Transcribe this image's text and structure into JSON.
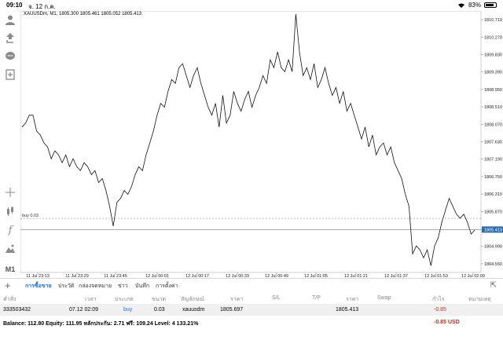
{
  "status": {
    "time": "09:10",
    "date": "จ. 12 ก.ค.",
    "battery": "83%",
    "battery_level": 0.83
  },
  "toolbar": {
    "timeframe": "M1"
  },
  "chart": {
    "header": "XAUUSDm, M1, 1805.300 1805.461 1805.052 1805.413",
    "buy_label": "buy 0.03",
    "current_price": "1805.413"
  },
  "chart_data": {
    "type": "line",
    "ylim": [
      1804.33,
      1810.93
    ],
    "y_ticks": [
      "1810.710",
      "1810.270",
      "1809.830",
      "1809.390",
      "1808.950",
      "1808.510",
      "1808.070",
      "1807.630",
      "1807.190",
      "1806.750",
      "1806.310",
      "1805.870",
      "1805.413",
      "1804.990",
      "1804.550"
    ],
    "y_tick_values": [
      1810.71,
      1810.27,
      1809.83,
      1809.39,
      1808.95,
      1808.51,
      1808.07,
      1807.63,
      1807.19,
      1806.75,
      1806.31,
      1805.87,
      1805.413,
      1804.99,
      1804.55
    ],
    "x_labels": [
      "11 Jul 23:13",
      "11 Jul 23:29",
      "11 Jul 23:45",
      "12 Jul 00:01",
      "12 Jul 00:17",
      "12 Jul 00:33",
      "12 Jul 00:49",
      "12 Jul 01:05",
      "12 Jul 01:21",
      "12 Jul 01:37",
      "12 Jul 01:53",
      "12 Jul 02:09"
    ],
    "buy_level": 1805.697,
    "current_level": 1805.413,
    "series": [
      {
        "values": [
          1808.0,
          1808.1,
          1808.3,
          1808.3,
          1807.9,
          1807.8,
          1807.6,
          1807.5,
          1807.2,
          1807.4,
          1807.3,
          1807.1,
          1807.3,
          1807.0,
          1807.2,
          1807.0,
          1806.9,
          1807.1,
          1807.0,
          1806.8,
          1806.9,
          1806.6,
          1806.7,
          1806.4,
          1806.0,
          1805.5,
          1806.1,
          1806.2,
          1806.4,
          1806.3,
          1806.5,
          1806.8,
          1807.0,
          1806.9,
          1807.3,
          1807.6,
          1807.9,
          1808.3,
          1808.6,
          1808.5,
          1808.9,
          1809.2,
          1809.1,
          1809.5,
          1809.6,
          1809.3,
          1809.0,
          1809.3,
          1809.5,
          1809.1,
          1808.8,
          1808.5,
          1808.3,
          1808.6,
          1808.0,
          1808.8,
          1808.1,
          1808.3,
          1808.9,
          1808.6,
          1808.4,
          1808.7,
          1808.9,
          1808.5,
          1808.8,
          1809.0,
          1809.3,
          1809.1,
          1809.7,
          1809.5,
          1809.9,
          1809.5,
          1809.4,
          1809.7,
          1809.4,
          1810.85,
          1809.9,
          1809.3,
          1809.5,
          1809.2,
          1809.6,
          1809.0,
          1809.2,
          1809.5,
          1809.1,
          1808.8,
          1809.0,
          1808.6,
          1808.9,
          1808.4,
          1808.6,
          1808.3,
          1808.0,
          1807.7,
          1808.0,
          1807.5,
          1807.8,
          1807.3,
          1807.5,
          1807.6,
          1807.3,
          1807.5,
          1807.1,
          1806.9,
          1806.7,
          1806.3,
          1806.0,
          1804.8,
          1805.0,
          1804.9,
          1804.7,
          1804.9,
          1804.5,
          1805.0,
          1805.2,
          1805.6,
          1805.9,
          1806.2,
          1806.0,
          1805.8,
          1805.7,
          1805.8,
          1805.6,
          1805.3,
          1805.4
        ]
      }
    ]
  },
  "tabs": [
    {
      "label": "การซื้อขาย",
      "active": true
    },
    {
      "label": "ประวัติ",
      "active": false
    },
    {
      "label": "กล่องจดหมาย",
      "active": false
    },
    {
      "label": "ข่าว",
      "active": false
    },
    {
      "label": "บันทึก",
      "active": false
    },
    {
      "label": "การตั้งค่า",
      "active": false
    }
  ],
  "table": {
    "headers": [
      "คำสั่ง",
      "เวลา",
      "ประเภท",
      "ขนาด",
      "สัญลักษณ์",
      "ราคา",
      "S/L",
      "T/P",
      "ราคา",
      "Swap",
      "กำไร",
      "หมายเหตุ"
    ],
    "row": {
      "order": "333503432",
      "time": "07.12 02:09",
      "type": "buy",
      "size": "0.03",
      "symbol": "xauusdm",
      "price": "1805.697",
      "sl": "",
      "tp": "",
      "current": "1805.413",
      "swap": "",
      "profit": "-0.85",
      "comment": ""
    }
  },
  "summary": {
    "text": "Balance: 112.80 Equity: 111.95 หลักประกัน: 2.71 ฟรี: 109.24 Level: 4 133.21%",
    "profit": "-0.85",
    "currency": "USD"
  }
}
